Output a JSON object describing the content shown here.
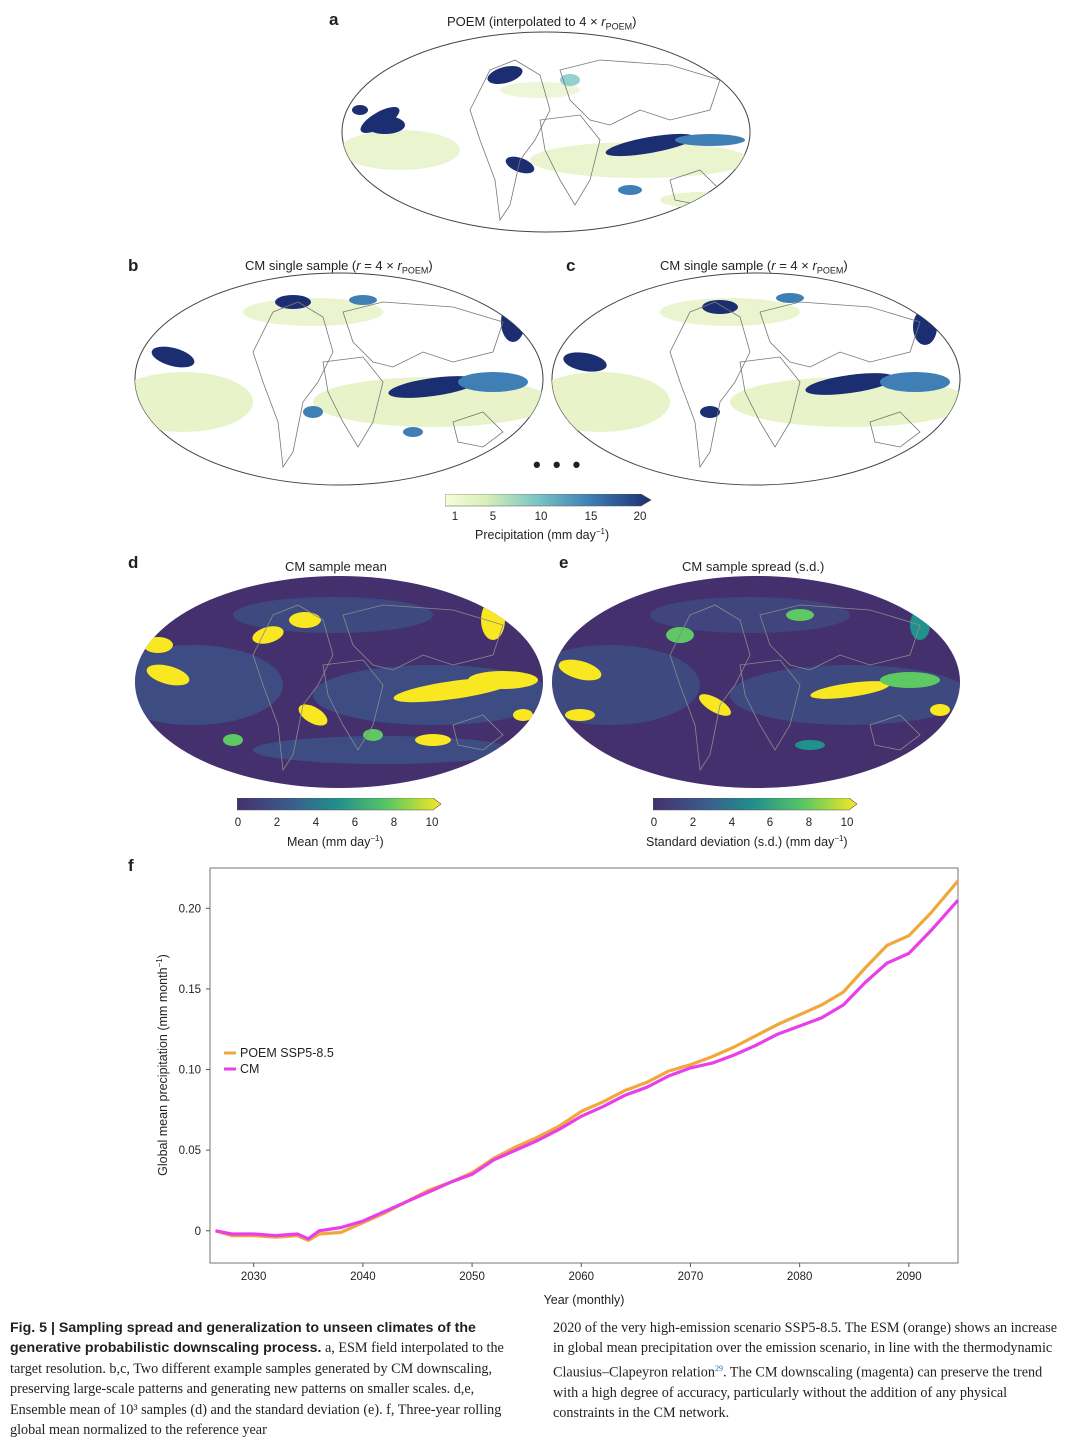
{
  "panels": {
    "a": {
      "letter": "a",
      "title_main": "POEM (interpolated to 4 × ",
      "title_r": "r",
      "title_sub": "POEM",
      "title_end": ")"
    },
    "b": {
      "letter": "b",
      "title_main": "CM single sample (",
      "title_r": "r",
      "title_mid": " = 4 × ",
      "title_r2": "r",
      "title_sub": "POEM",
      "title_end": ")"
    },
    "c": {
      "letter": "c",
      "title_main": "CM single sample (",
      "title_r": "r",
      "title_mid": " = 4 × ",
      "title_r2": "r",
      "title_sub": "POEM",
      "title_end": ")"
    },
    "d": {
      "letter": "d",
      "title": "CM sample mean"
    },
    "e": {
      "letter": "e",
      "title": "CM sample spread (s.d.)"
    },
    "f": {
      "letter": "f"
    },
    "ellipsis": "• • •"
  },
  "colorbars": {
    "precip": {
      "ticks": [
        "1",
        "5",
        "10",
        "15",
        "20"
      ],
      "label": "Precipitation (mm day",
      "label_sup": "−1",
      "label_end": ")"
    },
    "mean": {
      "ticks": [
        "0",
        "2",
        "4",
        "6",
        "8",
        "10"
      ],
      "label": "Mean (mm day",
      "label_sup": "−1",
      "label_end": ")"
    },
    "sd": {
      "ticks": [
        "0",
        "2",
        "4",
        "6",
        "8",
        "10"
      ],
      "label": "Standard deviation (s.d.) (mm day",
      "label_sup": "−1",
      "label_end": ")"
    }
  },
  "colors": {
    "precip_low": "#f7fcd9",
    "precip_high": "#1c2e72",
    "viridis_low": "#45306e",
    "viridis_high": "#f9e721",
    "poem": "#f0a83c",
    "cm": "#e83fe8"
  },
  "chart_data": {
    "type": "line",
    "xlabel": "Year (monthly)",
    "ylabel": "Global mean precipitation (mm month",
    "ylabel_sup": "−1",
    "ylabel_end": ")",
    "xlim": [
      2026,
      2094.5
    ],
    "ylim": [
      -0.02,
      0.225
    ],
    "xticks": [
      2030,
      2040,
      2050,
      2060,
      2070,
      2080,
      2090
    ],
    "yticks": [
      0,
      0.05,
      0.1,
      0.15,
      0.2
    ],
    "ytick_labels": [
      "0",
      "0.05",
      "0.10",
      "0.15",
      "0.20"
    ],
    "legend_position": "center-left",
    "series": [
      {
        "name": "POEM SSP5-8.5",
        "x": [
          2026.5,
          2028,
          2030,
          2032,
          2034,
          2035,
          2036,
          2038,
          2040,
          2042,
          2044,
          2046,
          2048,
          2050,
          2052,
          2054,
          2056,
          2058,
          2060,
          2062,
          2064,
          2066,
          2068,
          2070,
          2072,
          2074,
          2076,
          2078,
          2080,
          2082,
          2084,
          2086,
          2088,
          2090,
          2092,
          2094.5
        ],
        "values": [
          0.0,
          -0.003,
          -0.003,
          -0.004,
          -0.003,
          -0.006,
          -0.002,
          -0.001,
          0.005,
          0.011,
          0.018,
          0.025,
          0.03,
          0.036,
          0.045,
          0.052,
          0.058,
          0.065,
          0.074,
          0.08,
          0.087,
          0.092,
          0.099,
          0.103,
          0.108,
          0.114,
          0.121,
          0.128,
          0.134,
          0.14,
          0.148,
          0.163,
          0.177,
          0.183,
          0.197,
          0.217
        ]
      },
      {
        "name": "CM",
        "x": [
          2026.5,
          2028,
          2030,
          2032,
          2034,
          2035,
          2036,
          2038,
          2040,
          2042,
          2044,
          2046,
          2048,
          2050,
          2052,
          2054,
          2056,
          2058,
          2060,
          2062,
          2064,
          2066,
          2068,
          2070,
          2072,
          2074,
          2076,
          2078,
          2080,
          2082,
          2084,
          2086,
          2088,
          2090,
          2092,
          2094.5
        ],
        "values": [
          0.0,
          -0.002,
          -0.002,
          -0.003,
          -0.002,
          -0.005,
          0.0,
          0.002,
          0.006,
          0.012,
          0.018,
          0.024,
          0.03,
          0.035,
          0.044,
          0.05,
          0.056,
          0.063,
          0.071,
          0.077,
          0.084,
          0.089,
          0.096,
          0.101,
          0.104,
          0.109,
          0.115,
          0.122,
          0.127,
          0.132,
          0.14,
          0.154,
          0.166,
          0.172,
          0.186,
          0.205
        ]
      }
    ]
  },
  "caption": {
    "fig_label": "Fig. 5 | Sampling spread and generalization to unseen climates of the generative probabilistic downscaling process.",
    "left_text": " a, ESM field interpolated to the target resolution. b,c, Two different example samples generated by CM downscaling, preserving large-scale patterns and generating new patterns on smaller scales. d,e, Ensemble mean of 10³ samples (d) and the standard deviation (e). f, Three-year rolling global mean normalized to the reference year",
    "right_text_1": "2020 of the very high-emission scenario SSP5-8.5. The ESM (orange) shows an increase in global mean precipitation over the emission scenario, in line with the thermodynamic Clausius–Clapeyron relation",
    "right_ref": "29",
    "right_text_2": ". The CM downscaling (magenta) can preserve the trend with a high degree of accuracy, particularly without the addition of any physical constraints in the CM network."
  }
}
